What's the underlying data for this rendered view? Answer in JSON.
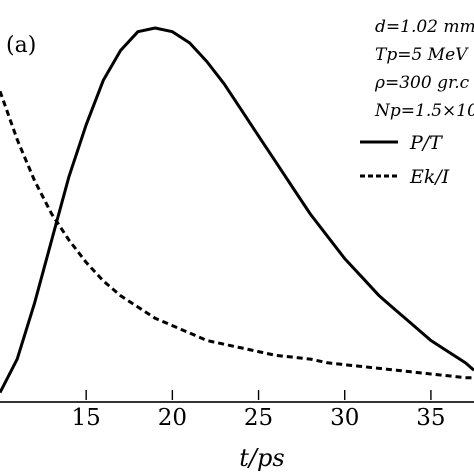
{
  "chart_data": {
    "type": "line",
    "panel_label": "(a)",
    "xlabel": "t/ps",
    "xlim": [
      10,
      37.5
    ],
    "ylim": [
      0,
      1.0
    ],
    "xticks": [
      15,
      20,
      25,
      30,
      35
    ],
    "tick_labels": [
      "15",
      "20",
      "25",
      "30",
      "35"
    ],
    "grid": false,
    "legend_position": "top-right",
    "parameters": [
      "d=1.02 mm",
      "Tp=5 MeV",
      "ρ=300 gr.c",
      "Np=1.5×10"
    ],
    "series": [
      {
        "name": "P/T",
        "style": "solid",
        "x": [
          10,
          11,
          12,
          13,
          14,
          15,
          16,
          17,
          18,
          19,
          20,
          21,
          22,
          23,
          24,
          25,
          26,
          27,
          28,
          29,
          30,
          31,
          32,
          33,
          34,
          35,
          36,
          37,
          37.5
        ],
        "y": [
          0.02,
          0.11,
          0.26,
          0.43,
          0.6,
          0.74,
          0.86,
          0.94,
          0.99,
          1.0,
          0.99,
          0.96,
          0.91,
          0.85,
          0.78,
          0.71,
          0.64,
          0.57,
          0.5,
          0.44,
          0.38,
          0.33,
          0.28,
          0.24,
          0.2,
          0.16,
          0.13,
          0.1,
          0.08
        ]
      },
      {
        "name": "Ek/I",
        "style": "dashed",
        "x": [
          10,
          11,
          12,
          13,
          14,
          15,
          16,
          17,
          18,
          19,
          20,
          21,
          22,
          23,
          24,
          25,
          26,
          27,
          28,
          29,
          30,
          31,
          32,
          33,
          34,
          35,
          36,
          37,
          37.5
        ],
        "y": [
          0.83,
          0.7,
          0.59,
          0.5,
          0.43,
          0.37,
          0.32,
          0.28,
          0.25,
          0.22,
          0.2,
          0.18,
          0.16,
          0.15,
          0.14,
          0.13,
          0.12,
          0.115,
          0.11,
          0.1,
          0.095,
          0.09,
          0.085,
          0.08,
          0.075,
          0.07,
          0.065,
          0.06,
          0.06
        ]
      }
    ]
  }
}
